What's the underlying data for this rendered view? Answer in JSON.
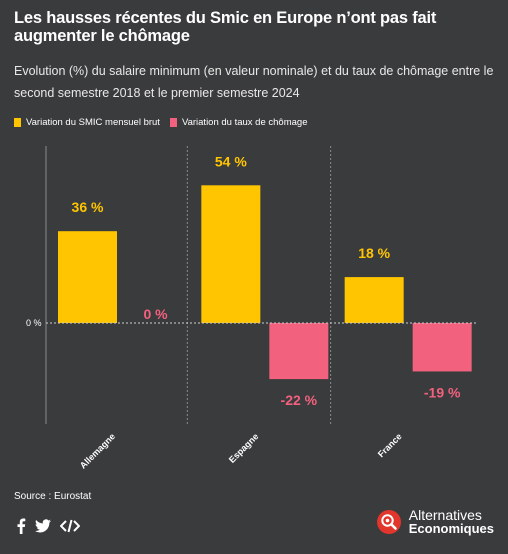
{
  "header": {
    "title": "Les hausses récentes du Smic en Europe n’ont pas fait augmenter le chômage",
    "subtitle": "Evolution (%) du salaire minimum (en valeur nominale) et du taux de chômage entre le second semestre 2018 et le premier semestre 2024"
  },
  "legend": {
    "smic": "Variation du SMIC mensuel brut",
    "chomage": "Variation du taux de chômage"
  },
  "colors": {
    "background": "#3a3b3d",
    "smic": "#ffc600",
    "chomage": "#f2617e"
  },
  "chart_data": {
    "type": "bar",
    "categories": [
      "Allemagne",
      "Espagne",
      "France"
    ],
    "series": [
      {
        "name": "Variation du SMIC mensuel brut",
        "values": [
          36,
          54,
          18
        ],
        "labels": [
          "36 %",
          "54 %",
          "18 %"
        ],
        "color": "#ffc600"
      },
      {
        "name": "Variation du taux de chômage",
        "values": [
          0,
          -22,
          -19
        ],
        "labels": [
          "0 %",
          "-22 %",
          "-19 %"
        ],
        "color": "#f2617e"
      }
    ],
    "zero_label": "0 %",
    "ylim": [
      -40,
      60
    ],
    "grid": false,
    "legend_position": "top-left"
  },
  "footer": {
    "source": "Source : Eurostat",
    "brand_line1": "Alternatives",
    "brand_line2": "Economiques"
  }
}
